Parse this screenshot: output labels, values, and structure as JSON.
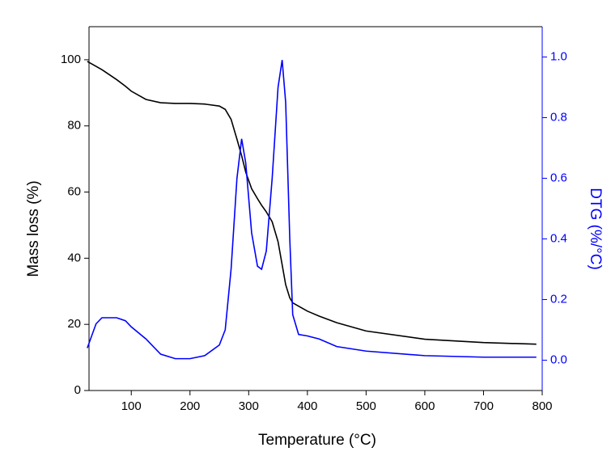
{
  "chart_data": {
    "type": "line",
    "x_label": "Temperature (°C)",
    "y_label": "Mass loss  (%)",
    "y2_label": "DTG (%/°C)",
    "x": [
      25,
      40,
      50,
      75,
      90,
      100,
      125,
      150,
      175,
      200,
      225,
      250,
      260,
      270,
      280,
      288,
      295,
      305,
      315,
      322,
      330,
      340,
      350,
      357,
      363,
      370,
      375,
      385,
      400,
      420,
      450,
      500,
      600,
      700,
      790
    ],
    "series": [
      {
        "name": "Mass loss",
        "color": "#000000",
        "axis": "y",
        "values": [
          99.5,
          98,
          97,
          94,
          92,
          90.5,
          88,
          87,
          86.8,
          86.8,
          86.6,
          86,
          85,
          82,
          76,
          71,
          66,
          61,
          58,
          56,
          54,
          51,
          45,
          38,
          32,
          28,
          26.5,
          25.5,
          24,
          22.5,
          20.5,
          18,
          15.5,
          14.5,
          14
        ]
      },
      {
        "name": "DTG",
        "color": "#0000ff",
        "axis": "y2",
        "values": [
          0.04,
          0.12,
          0.14,
          0.14,
          0.13,
          0.11,
          0.07,
          0.02,
          0.005,
          0.005,
          0.015,
          0.05,
          0.1,
          0.3,
          0.6,
          0.73,
          0.65,
          0.42,
          0.31,
          0.3,
          0.36,
          0.6,
          0.9,
          0.99,
          0.85,
          0.4,
          0.15,
          0.085,
          0.08,
          0.07,
          0.045,
          0.03,
          0.015,
          0.01,
          0.01
        ]
      }
    ],
    "xlim": [
      28,
      800
    ],
    "xticks": [
      100,
      200,
      300,
      400,
      500,
      600,
      700,
      800
    ],
    "ylim": [
      0,
      110
    ],
    "yticks": [
      0,
      20,
      40,
      60,
      80,
      100
    ],
    "y2lim": [
      -0.1,
      1.1
    ],
    "y2ticks": [
      {
        "value": 0,
        "label": "0.0"
      },
      {
        "value": 0.2,
        "label": "0.2"
      },
      {
        "value": 0.4,
        "label": "0.4"
      },
      {
        "value": 0.6,
        "label": "0.6"
      },
      {
        "value": 0.8,
        "label": "0.8"
      },
      {
        "value": 1,
        "label": "1.0"
      }
    ],
    "y2_color": "#0000ff"
  }
}
